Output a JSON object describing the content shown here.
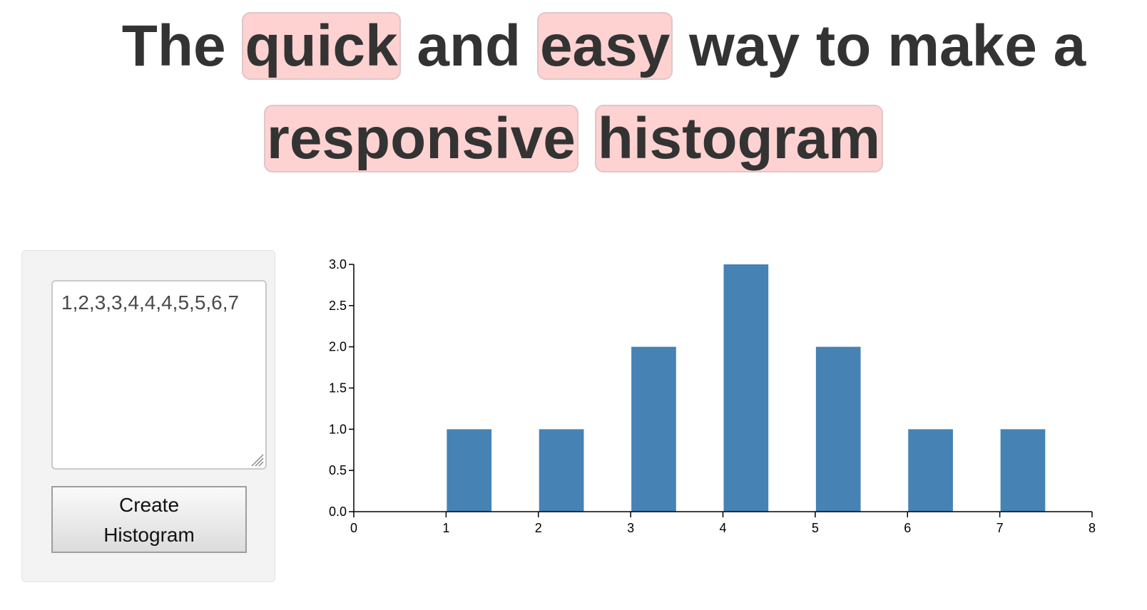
{
  "headline": {
    "line1": [
      {
        "text": "The",
        "highlight": false
      },
      {
        "text": "quick",
        "highlight": true
      },
      {
        "text": "and",
        "highlight": false
      },
      {
        "text": "easy",
        "highlight": true
      },
      {
        "text": "way to make a",
        "highlight": false
      }
    ],
    "line2": [
      {
        "text": "responsive",
        "highlight": true
      },
      {
        "text": "histogram",
        "highlight": true
      }
    ]
  },
  "form": {
    "input_value": "1,2,3,3,4,4,4,5,5,6,7",
    "button_label_line1": "Create",
    "button_label_line2": "Histogram"
  },
  "colors": {
    "bar": "#4682b4",
    "highlight": "#ffd2d2"
  },
  "chart_data": {
    "type": "bar",
    "x": [
      1,
      2,
      3,
      4,
      5,
      6,
      7
    ],
    "values": [
      1,
      1,
      2,
      3,
      2,
      1,
      1
    ],
    "bin_width": 0.5,
    "xlim": [
      0,
      8
    ],
    "ylim": [
      0,
      3
    ],
    "x_ticks": [
      "0",
      "1",
      "2",
      "3",
      "4",
      "5",
      "6",
      "7",
      "8"
    ],
    "y_ticks": [
      "0.0",
      "0.5",
      "1.0",
      "1.5",
      "2.0",
      "2.5",
      "3.0"
    ],
    "title": "",
    "xlabel": "",
    "ylabel": "",
    "grid": false
  }
}
